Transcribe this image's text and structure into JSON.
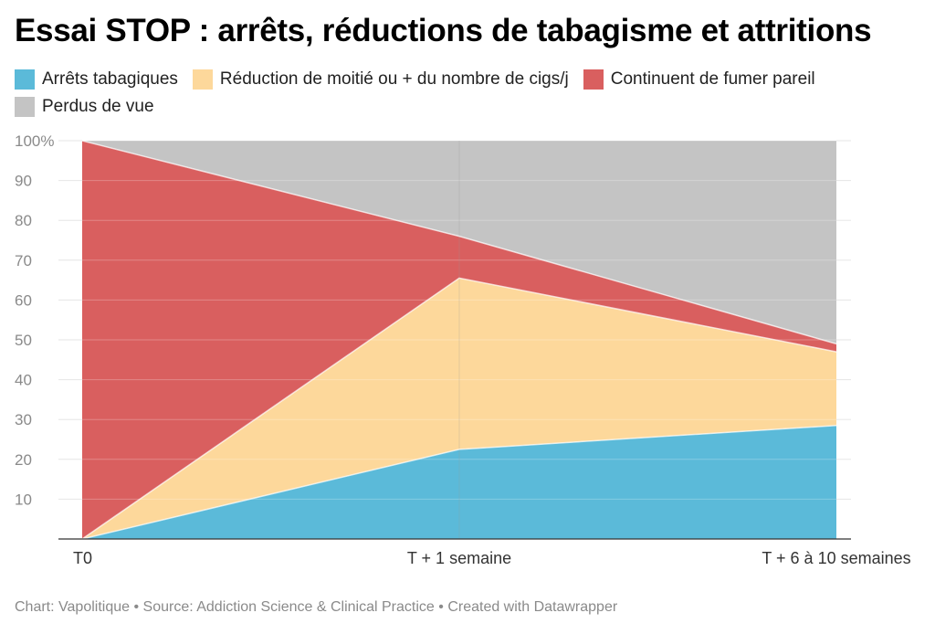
{
  "title": "Essai STOP : arrêts, réductions de tabagisme et attritions",
  "footer": {
    "chart_label": "Chart:",
    "chart_by": "Vapolitique",
    "source_label": "Source:",
    "source": "Addiction Science & Clinical Practice",
    "created_with": "Created with Datawrapper",
    "separator": "•"
  },
  "chart_data": {
    "type": "area",
    "stacked": true,
    "x": [
      "T0",
      "T + 1 semaine",
      "T + 6 à 10 semaines"
    ],
    "ylim": [
      0,
      100
    ],
    "yticks": [
      10,
      20,
      30,
      40,
      50,
      60,
      70,
      80,
      90,
      100
    ],
    "ytick_labels": [
      "10",
      "20",
      "30",
      "40",
      "50",
      "60",
      "70",
      "80",
      "90",
      "100%"
    ],
    "grid": true,
    "legend_position": "top-left",
    "series": [
      {
        "name": "Arrêts tabagiques",
        "color": "#5bbad9",
        "values": [
          0,
          22.5,
          28.5
        ]
      },
      {
        "name": "Réduction de moitié ou + du nombre de cigs/j",
        "color": "#fdd89b",
        "values": [
          0,
          43,
          18.5
        ]
      },
      {
        "name": "Continuent de fumer pareil",
        "color": "#d95f5f",
        "values": [
          100,
          10.5,
          2
        ]
      },
      {
        "name": "Perdus de vue",
        "color": "#c4c4c4",
        "values": [
          0,
          24,
          51
        ]
      }
    ]
  }
}
